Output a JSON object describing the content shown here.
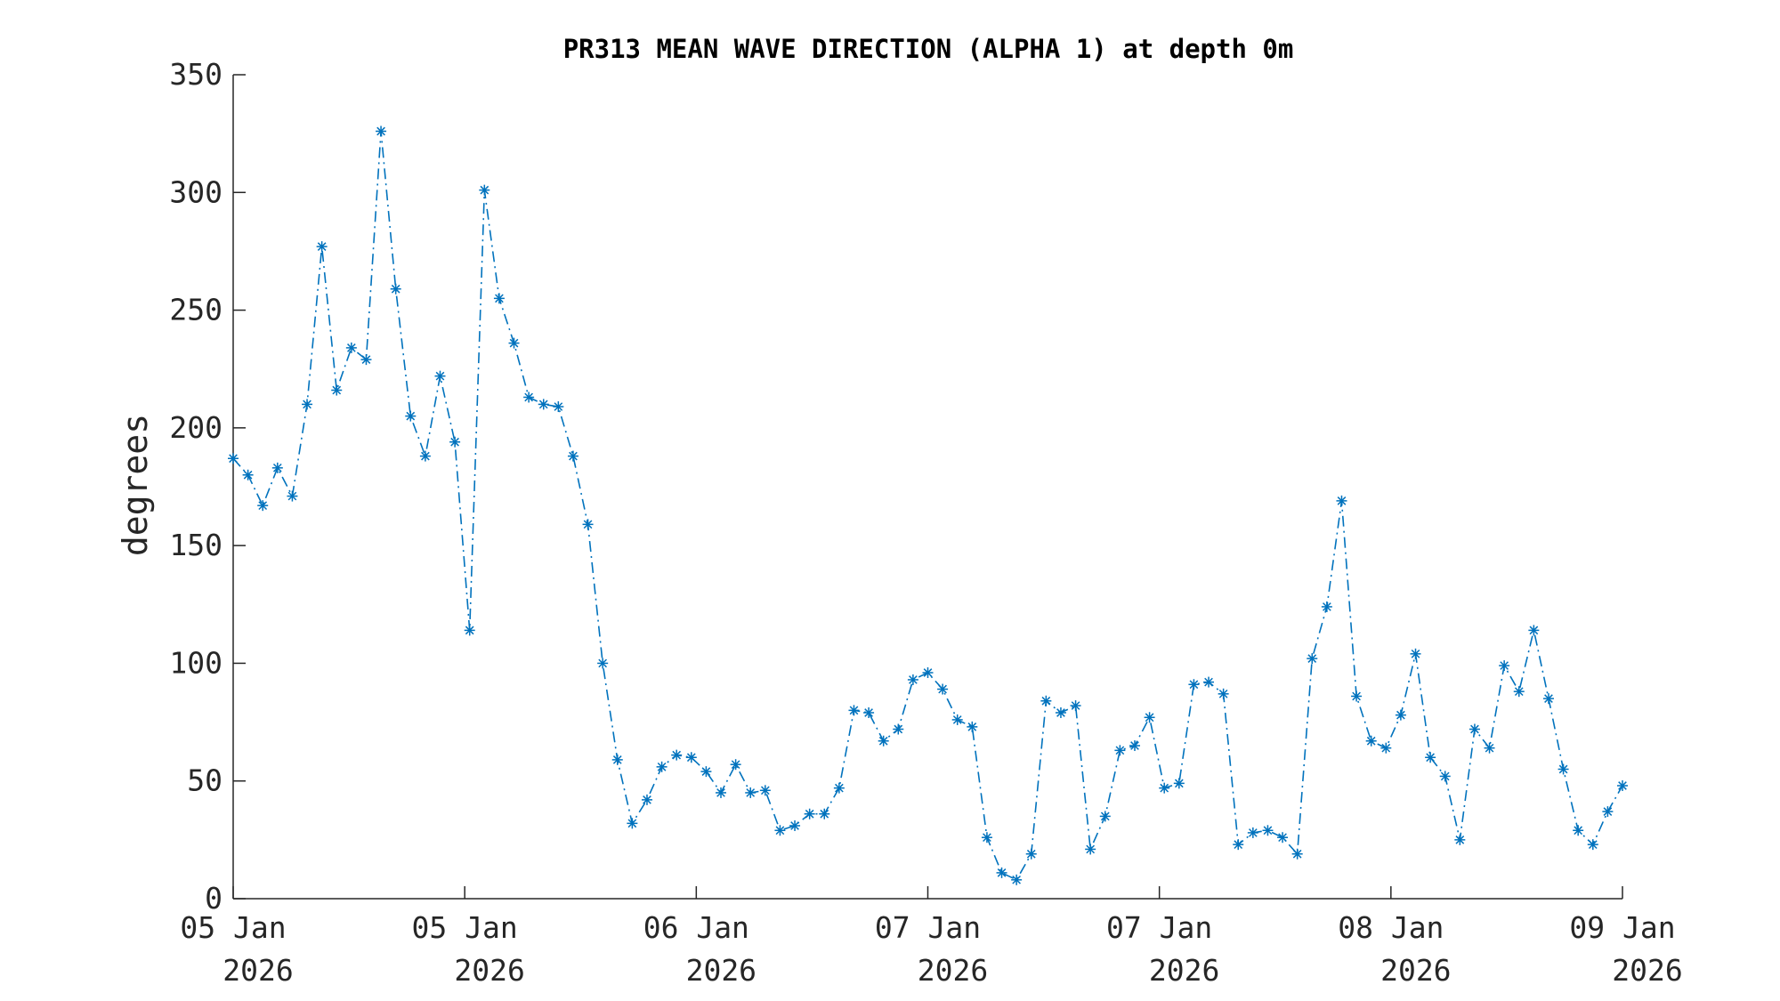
{
  "chart_data": {
    "type": "line",
    "title": "PR313 MEAN WAVE DIRECTION (ALPHA 1) at depth 0m",
    "xlabel": "",
    "ylabel": "degrees",
    "ylim": [
      0,
      350
    ],
    "yticks": [
      0,
      50,
      100,
      150,
      200,
      250,
      300,
      350
    ],
    "xlim": [
      0,
      96
    ],
    "xticks": [
      {
        "value": 0,
        "line1": "05 Jan",
        "line2": "2026"
      },
      {
        "value": 16,
        "line1": "05 Jan",
        "line2": "2026"
      },
      {
        "value": 32,
        "line1": "06 Jan",
        "line2": "2026"
      },
      {
        "value": 48,
        "line1": "07 Jan",
        "line2": "2026"
      },
      {
        "value": 64,
        "line1": "07 Jan",
        "line2": "2026"
      },
      {
        "value": 80,
        "line1": "08 Jan",
        "line2": "2026"
      },
      {
        "value": 96,
        "line1": "09 Jan",
        "line2": "2026"
      }
    ],
    "grid": false,
    "legend": "none",
    "line_style": "dash-dot",
    "marker": "asterisk",
    "color": "#0072BD",
    "series": [
      {
        "values": [
          187,
          180,
          167,
          183,
          171,
          210,
          277,
          216,
          234,
          229,
          326,
          259,
          205,
          188,
          222,
          194,
          114,
          301,
          255,
          236,
          213,
          210,
          209,
          188,
          159,
          100,
          59,
          32,
          42,
          56,
          61,
          60,
          54,
          45,
          57,
          45,
          46,
          29,
          31,
          36,
          36,
          47,
          80,
          79,
          67,
          72,
          93,
          96,
          89,
          76,
          73,
          26,
          11,
          8,
          19,
          84,
          79,
          82,
          21,
          35,
          63,
          65,
          77,
          47,
          49,
          91,
          92,
          87,
          23,
          28,
          29,
          26,
          19,
          102,
          124,
          169,
          86,
          67,
          64,
          78,
          104,
          60,
          52,
          25,
          72,
          64,
          99,
          88,
          114,
          85,
          55,
          29,
          23,
          37,
          48
        ]
      }
    ]
  }
}
